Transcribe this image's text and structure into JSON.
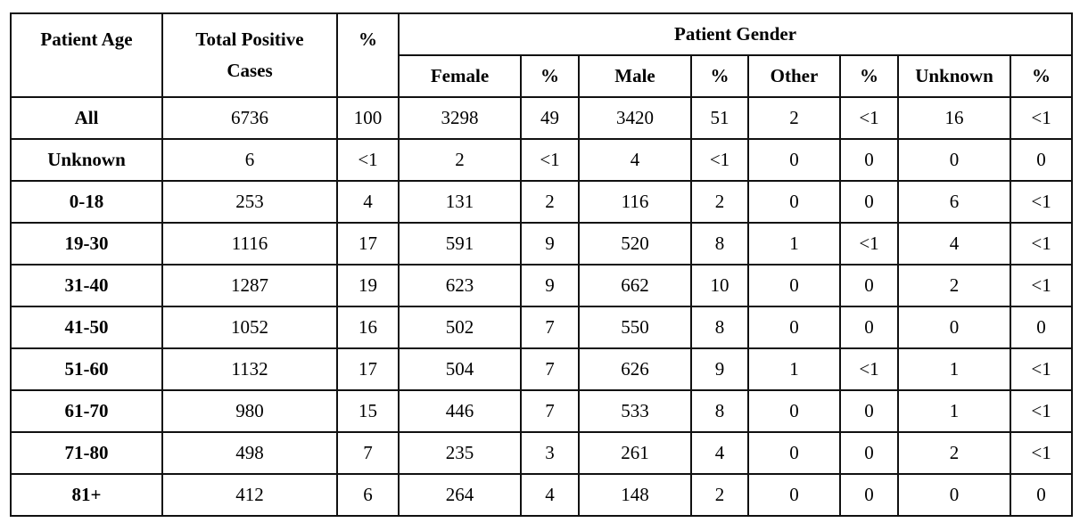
{
  "table": {
    "headers": {
      "age": "Patient Age",
      "total": "Total Positive Cases",
      "total_pct": "%",
      "gender_group": "Patient Gender",
      "female": "Female",
      "female_pct": "%",
      "male": "Male",
      "male_pct": "%",
      "other": "Other",
      "other_pct": "%",
      "unknown": "Unknown",
      "unknown_pct": "%"
    },
    "rows": [
      [
        "All",
        "6736",
        "100",
        "3298",
        "49",
        "3420",
        "51",
        "2",
        "<1",
        "16",
        "<1"
      ],
      [
        "Unknown",
        "6",
        "<1",
        "2",
        "<1",
        "4",
        "<1",
        "0",
        "0",
        "0",
        "0"
      ],
      [
        "0-18",
        "253",
        "4",
        "131",
        "2",
        "116",
        "2",
        "0",
        "0",
        "6",
        "<1"
      ],
      [
        "19-30",
        "1116",
        "17",
        "591",
        "9",
        "520",
        "8",
        "1",
        "<1",
        "4",
        "<1"
      ],
      [
        "31-40",
        "1287",
        "19",
        "623",
        "9",
        "662",
        "10",
        "0",
        "0",
        "2",
        "<1"
      ],
      [
        "41-50",
        "1052",
        "16",
        "502",
        "7",
        "550",
        "8",
        "0",
        "0",
        "0",
        "0"
      ],
      [
        "51-60",
        "1132",
        "17",
        "504",
        "7",
        "626",
        "9",
        "1",
        "<1",
        "1",
        "<1"
      ],
      [
        "61-70",
        "980",
        "15",
        "446",
        "7",
        "533",
        "8",
        "0",
        "0",
        "1",
        "<1"
      ],
      [
        "71-80",
        "498",
        "7",
        "235",
        "3",
        "261",
        "4",
        "0",
        "0",
        "2",
        "<1"
      ],
      [
        "81+",
        "412",
        "6",
        "264",
        "4",
        "148",
        "2",
        "0",
        "0",
        "0",
        "0"
      ]
    ]
  }
}
